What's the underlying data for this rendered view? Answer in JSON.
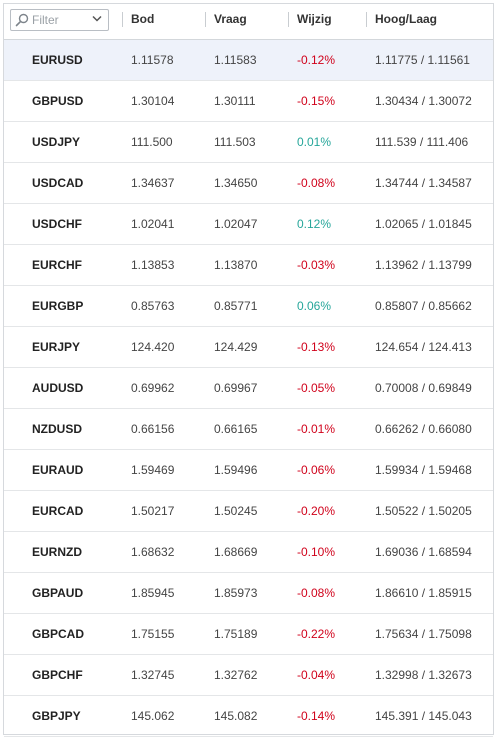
{
  "filter": {
    "placeholder": "Filter"
  },
  "columns": {
    "bid": "Bod",
    "ask": "Vraag",
    "change": "Wijzig",
    "high_low": "Hoog/Laag"
  },
  "colors": {
    "negative": "#d0021b",
    "positive": "#26a69a",
    "selected_row": "#eef2fa"
  },
  "rows": [
    {
      "symbol": "EURUSD",
      "bid": "1.11578",
      "ask": "1.11583",
      "change": "-0.12%",
      "high_low": "1.11775 / 1.11561",
      "dir": "neg"
    },
    {
      "symbol": "GBPUSD",
      "bid": "1.30104",
      "ask": "1.30111",
      "change": "-0.15%",
      "high_low": "1.30434 / 1.30072",
      "dir": "neg"
    },
    {
      "symbol": "USDJPY",
      "bid": "111.500",
      "ask": "111.503",
      "change": "0.01%",
      "high_low": "111.539 / 111.406",
      "dir": "pos"
    },
    {
      "symbol": "USDCAD",
      "bid": "1.34637",
      "ask": "1.34650",
      "change": "-0.08%",
      "high_low": "1.34744 / 1.34587",
      "dir": "neg"
    },
    {
      "symbol": "USDCHF",
      "bid": "1.02041",
      "ask": "1.02047",
      "change": "0.12%",
      "high_low": "1.02065 / 1.01845",
      "dir": "pos"
    },
    {
      "symbol": "EURCHF",
      "bid": "1.13853",
      "ask": "1.13870",
      "change": "-0.03%",
      "high_low": "1.13962 / 1.13799",
      "dir": "neg"
    },
    {
      "symbol": "EURGBP",
      "bid": "0.85763",
      "ask": "0.85771",
      "change": "0.06%",
      "high_low": "0.85807 / 0.85662",
      "dir": "pos"
    },
    {
      "symbol": "EURJPY",
      "bid": "124.420",
      "ask": "124.429",
      "change": "-0.13%",
      "high_low": "124.654 / 124.413",
      "dir": "neg"
    },
    {
      "symbol": "AUDUSD",
      "bid": "0.69962",
      "ask": "0.69967",
      "change": "-0.05%",
      "high_low": "0.70008 / 0.69849",
      "dir": "neg"
    },
    {
      "symbol": "NZDUSD",
      "bid": "0.66156",
      "ask": "0.66165",
      "change": "-0.01%",
      "high_low": "0.66262 / 0.66080",
      "dir": "neg"
    },
    {
      "symbol": "EURAUD",
      "bid": "1.59469",
      "ask": "1.59496",
      "change": "-0.06%",
      "high_low": "1.59934 / 1.59468",
      "dir": "neg"
    },
    {
      "symbol": "EURCAD",
      "bid": "1.50217",
      "ask": "1.50245",
      "change": "-0.20%",
      "high_low": "1.50522 / 1.50205",
      "dir": "neg"
    },
    {
      "symbol": "EURNZD",
      "bid": "1.68632",
      "ask": "1.68669",
      "change": "-0.10%",
      "high_low": "1.69036 / 1.68594",
      "dir": "neg"
    },
    {
      "symbol": "GBPAUD",
      "bid": "1.85945",
      "ask": "1.85973",
      "change": "-0.08%",
      "high_low": "1.86610 / 1.85915",
      "dir": "neg"
    },
    {
      "symbol": "GBPCAD",
      "bid": "1.75155",
      "ask": "1.75189",
      "change": "-0.22%",
      "high_low": "1.75634 / 1.75098",
      "dir": "neg"
    },
    {
      "symbol": "GBPCHF",
      "bid": "1.32745",
      "ask": "1.32762",
      "change": "-0.04%",
      "high_low": "1.32998 / 1.32673",
      "dir": "neg"
    },
    {
      "symbol": "GBPJPY",
      "bid": "145.062",
      "ask": "145.082",
      "change": "-0.14%",
      "high_low": "145.391 / 145.043",
      "dir": "neg"
    }
  ]
}
